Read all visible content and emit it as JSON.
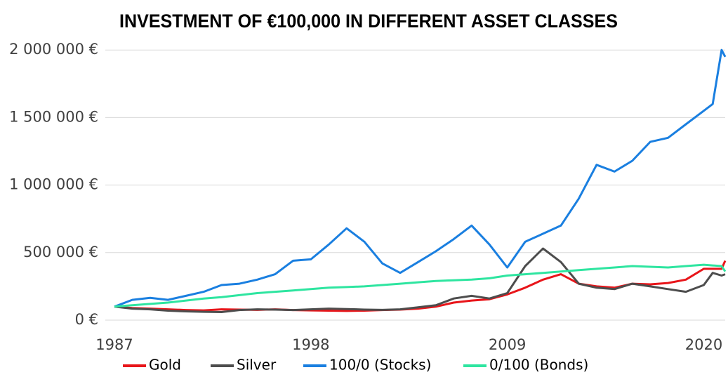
{
  "chart_data": {
    "type": "line",
    "title": "INVESTMENT OF €100,000 IN DIFFERENT ASSET CLASSES",
    "x": [
      1987,
      1988,
      1989,
      1990,
      1991,
      1992,
      1993,
      1994,
      1995,
      1996,
      1997,
      1998,
      1999,
      2000,
      2001,
      2002,
      2003,
      2004,
      2005,
      2006,
      2007,
      2008,
      2009,
      2010,
      2011,
      2012,
      2013,
      2014,
      2015,
      2016,
      2017,
      2018,
      2019,
      2020,
      2020.5,
      2021,
      2021.2
    ],
    "series": [
      {
        "name": "Gold",
        "color": "#e8151a",
        "values": [
          100000,
          90000,
          85000,
          80000,
          75000,
          72000,
          80000,
          78000,
          76000,
          80000,
          75000,
          72000,
          70000,
          68000,
          70000,
          75000,
          78000,
          85000,
          100000,
          130000,
          145000,
          155000,
          190000,
          240000,
          300000,
          340000,
          270000,
          250000,
          240000,
          270000,
          265000,
          275000,
          300000,
          380000,
          380000,
          380000,
          440000
        ]
      },
      {
        "name": "Silver",
        "color": "#4d4d4d",
        "values": [
          100000,
          85000,
          80000,
          70000,
          65000,
          62000,
          60000,
          75000,
          80000,
          78000,
          75000,
          80000,
          85000,
          82000,
          78000,
          76000,
          80000,
          95000,
          110000,
          160000,
          180000,
          160000,
          200000,
          400000,
          530000,
          430000,
          270000,
          240000,
          230000,
          270000,
          250000,
          230000,
          210000,
          260000,
          350000,
          330000,
          340000
        ]
      },
      {
        "name": "100/0 (Stocks)",
        "color": "#1a7fe0",
        "values": [
          100000,
          150000,
          165000,
          150000,
          180000,
          210000,
          260000,
          270000,
          300000,
          340000,
          440000,
          450000,
          560000,
          680000,
          580000,
          420000,
          350000,
          430000,
          510000,
          600000,
          700000,
          560000,
          390000,
          580000,
          640000,
          700000,
          900000,
          1150000,
          1100000,
          1180000,
          1320000,
          1350000,
          1450000,
          1550000,
          1600000,
          2000000,
          1950000
        ]
      },
      {
        "name": "0/100 (Bonds)",
        "color": "#2ee5a0",
        "values": [
          100000,
          110000,
          120000,
          130000,
          145000,
          160000,
          170000,
          185000,
          200000,
          210000,
          220000,
          230000,
          240000,
          245000,
          250000,
          260000,
          270000,
          280000,
          290000,
          295000,
          300000,
          310000,
          330000,
          340000,
          350000,
          360000,
          370000,
          380000,
          390000,
          400000,
          395000,
          390000,
          400000,
          410000,
          405000,
          400000,
          360000
        ]
      }
    ],
    "xlim": [
      1987,
      2021.2
    ],
    "xticks": [
      1987,
      1998,
      2009,
      2020
    ],
    "ylim": [
      0,
      2100000
    ],
    "yticks": [
      {
        "value": 0,
        "label": "0 €"
      },
      {
        "value": 500000,
        "label": "500 000 €"
      },
      {
        "value": 1000000,
        "label": "1 000 000 €"
      },
      {
        "value": 1500000,
        "label": "1 500 000 €"
      },
      {
        "value": 2000000,
        "label": "2 000 000 €"
      }
    ],
    "grid": true
  }
}
